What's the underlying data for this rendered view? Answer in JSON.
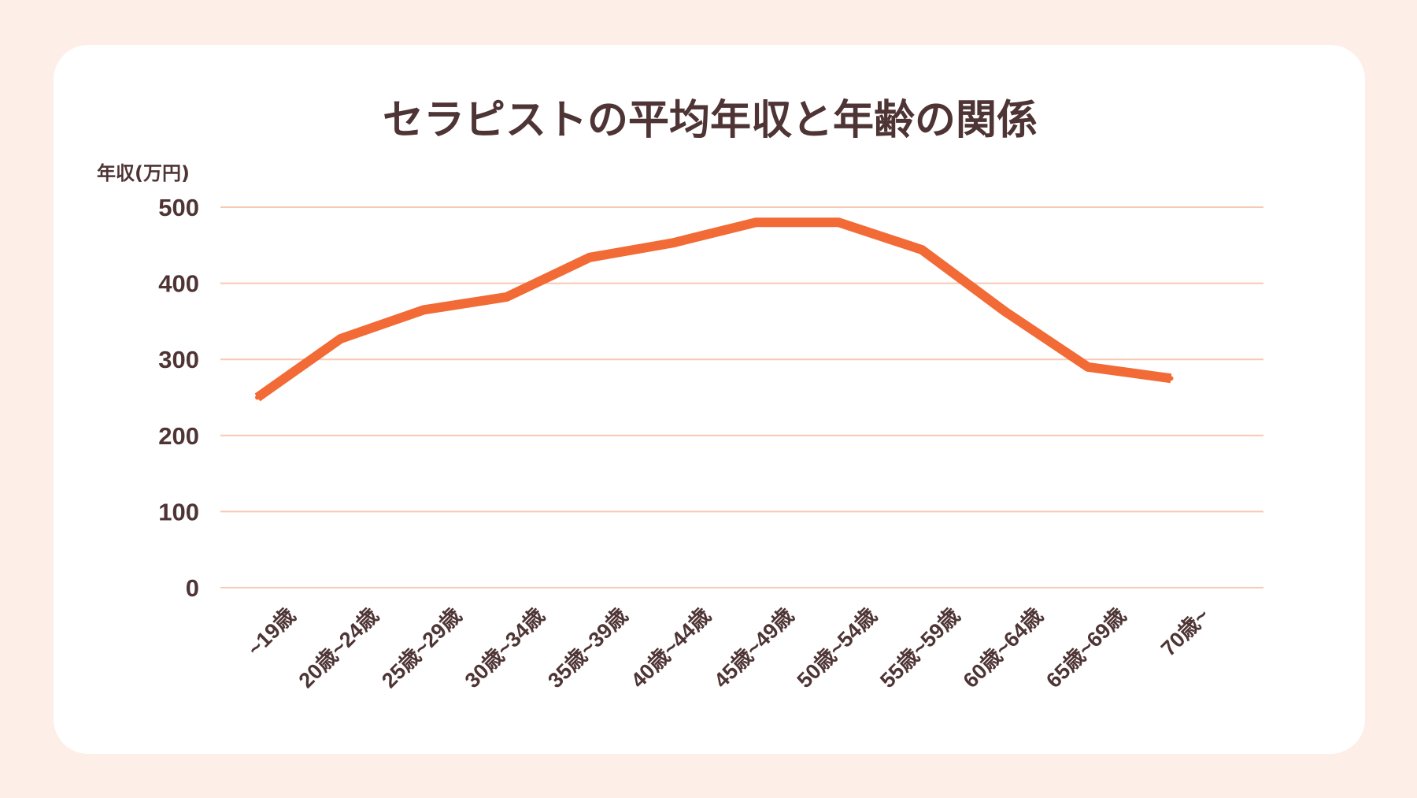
{
  "colors": {
    "background": "#fdeee8",
    "card": "#ffffff",
    "text": "#4e3434",
    "gridline": "#f6c9b4",
    "line": "#f26a35"
  },
  "chart_data": {
    "type": "line",
    "title": "セラピストの平均年収と年齢の関係",
    "ylabel": "年収(万円)",
    "xlabel": "",
    "ylim": [
      0,
      500
    ],
    "yticks": [
      "0",
      "100",
      "200",
      "300",
      "400",
      "500"
    ],
    "grid": true,
    "legend": "none",
    "categories": [
      "~19歳",
      "20歳~24歳",
      "25歳~29歳",
      "30歳~34歳",
      "35歳~39歳",
      "40歳~44歳",
      "45歳~49歳",
      "50歳~54歳",
      "55歳~59歳",
      "60歳~64歳",
      "65歳~69歳",
      "70歳~"
    ],
    "series": [
      {
        "values": [
          250,
          327,
          365,
          382,
          434,
          453,
          480,
          480,
          444,
          363,
          290,
          275
        ]
      }
    ]
  }
}
